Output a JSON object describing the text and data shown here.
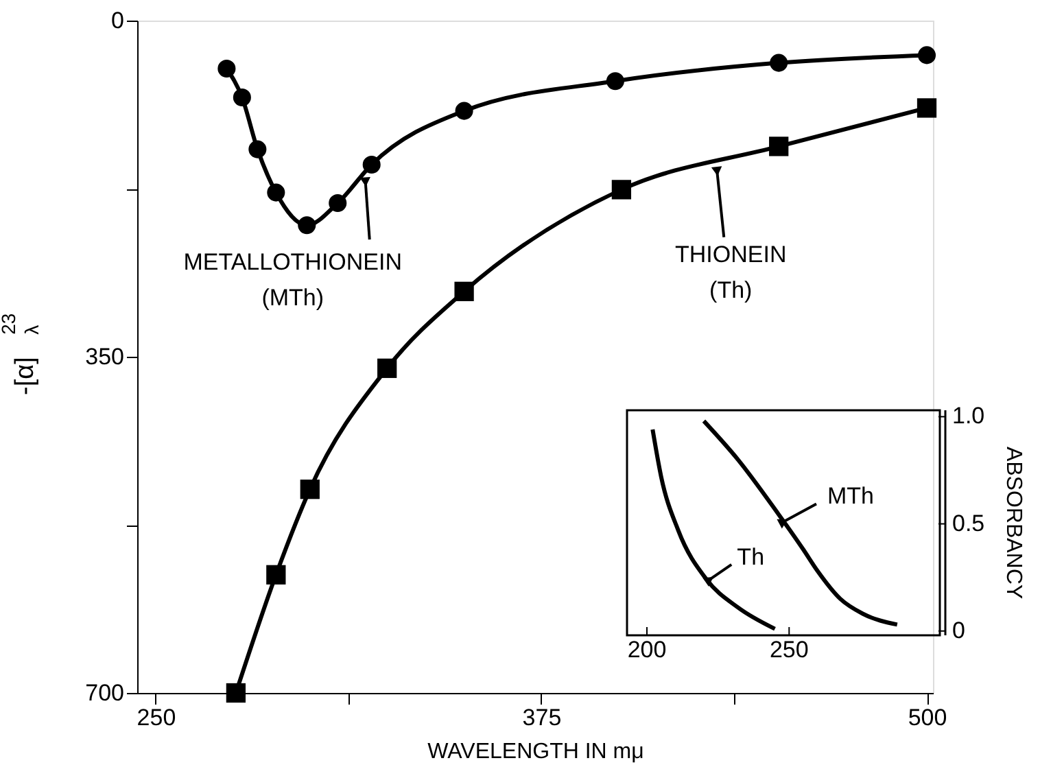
{
  "chart_data": [
    {
      "type": "line",
      "xlabel": "WAVELENGTH IN mμ",
      "ylabel": "-[α]$^{23}$$_{λ}$",
      "xlim": [
        244,
        502
      ],
      "ylim": [
        700,
        0
      ],
      "xticks": [
        250,
        {
          "value": 312.5,
          "label": null
        },
        375,
        {
          "value": 437.5,
          "label": null
        },
        500
      ],
      "yticks": [
        0,
        {
          "value": 175,
          "label": null
        },
        350,
        {
          "value": 525,
          "label": null
        },
        700
      ],
      "line_style": "solid",
      "series": [
        {
          "color": "#000000",
          "marker": "circle",
          "x": [
            273,
            278,
            283,
            289,
            299,
            309,
            320,
            350,
            399,
            452,
            500
          ],
          "values": [
            50,
            80,
            134,
            179,
            213,
            190,
            150,
            94,
            63,
            44,
            36
          ]
        },
        {
          "color": "#000000",
          "marker": "square",
          "x": [
            276,
            289,
            300,
            325,
            350,
            401,
            452,
            500
          ],
          "values": [
            700,
            577,
            488,
            362,
            282,
            176,
            131,
            91
          ]
        }
      ],
      "annotations": [
        {
          "text": "METALLOTHIONEIN\n(MTh)",
          "x": 318,
          "y": 168
        },
        {
          "text": "THIONEIN\n(Th)",
          "x": 432,
          "y": 157
        }
      ]
    },
    {
      "type": "line",
      "ylabel": "ABSORBANCY",
      "xlim": [
        193,
        303
      ],
      "ylim": [
        -0.02,
        1.03
      ],
      "xticks": [
        200,
        250
      ],
      "yticks": [
        0,
        0.5,
        {
          "value": 1,
          "label": "1.0"
        }
      ],
      "marker": "none",
      "line_style": "solid",
      "series": [
        {
          "color": "#000000",
          "x": [
            202,
            205,
            211,
            221,
            232,
            245
          ],
          "values": [
            0.94,
            0.72,
            0.47,
            0.24,
            0.11,
            0.01
          ]
        },
        {
          "color": "#000000",
          "x": [
            220,
            232,
            246,
            255,
            260,
            268,
            276,
            288
          ],
          "values": [
            0.98,
            0.8,
            0.55,
            0.38,
            0.28,
            0.15,
            0.08,
            0.03
          ]
        }
      ],
      "annotations": [
        {
          "text": "MTh",
          "x": 248,
          "y": 0.51
        },
        {
          "text": "Th",
          "x": 222,
          "y": 0.24
        }
      ]
    }
  ]
}
